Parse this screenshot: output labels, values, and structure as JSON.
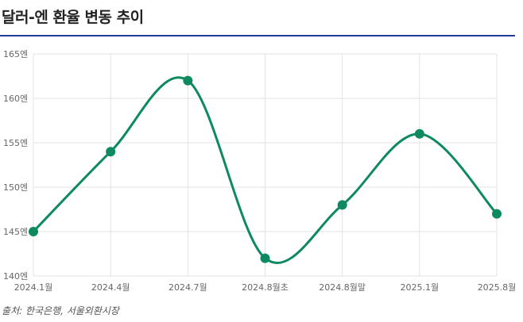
{
  "title": "달러-엔 환율 변동 추이",
  "source": "출처: 한국은행, 서울외환시장",
  "chart_data": {
    "type": "line",
    "title": "달러-엔 환율 변동 추이",
    "xlabel": "",
    "ylabel": "",
    "categories": [
      "2024.1월",
      "2024.4월",
      "2024.7월",
      "2024.8월초",
      "2024.8월말",
      "2025.1월",
      "2025.8월"
    ],
    "series": [
      {
        "values": [
          145,
          154,
          162,
          142,
          148,
          156,
          147
        ]
      }
    ],
    "ylim": [
      140,
      165
    ],
    "yticks": [
      140,
      145,
      150,
      155,
      160,
      165
    ],
    "ytick_labels": [
      "140엔",
      "145엔",
      "150엔",
      "155엔",
      "160엔",
      "165엔"
    ],
    "smooth": true,
    "grid": true,
    "legend": "none",
    "color": "#0e8a5f"
  }
}
